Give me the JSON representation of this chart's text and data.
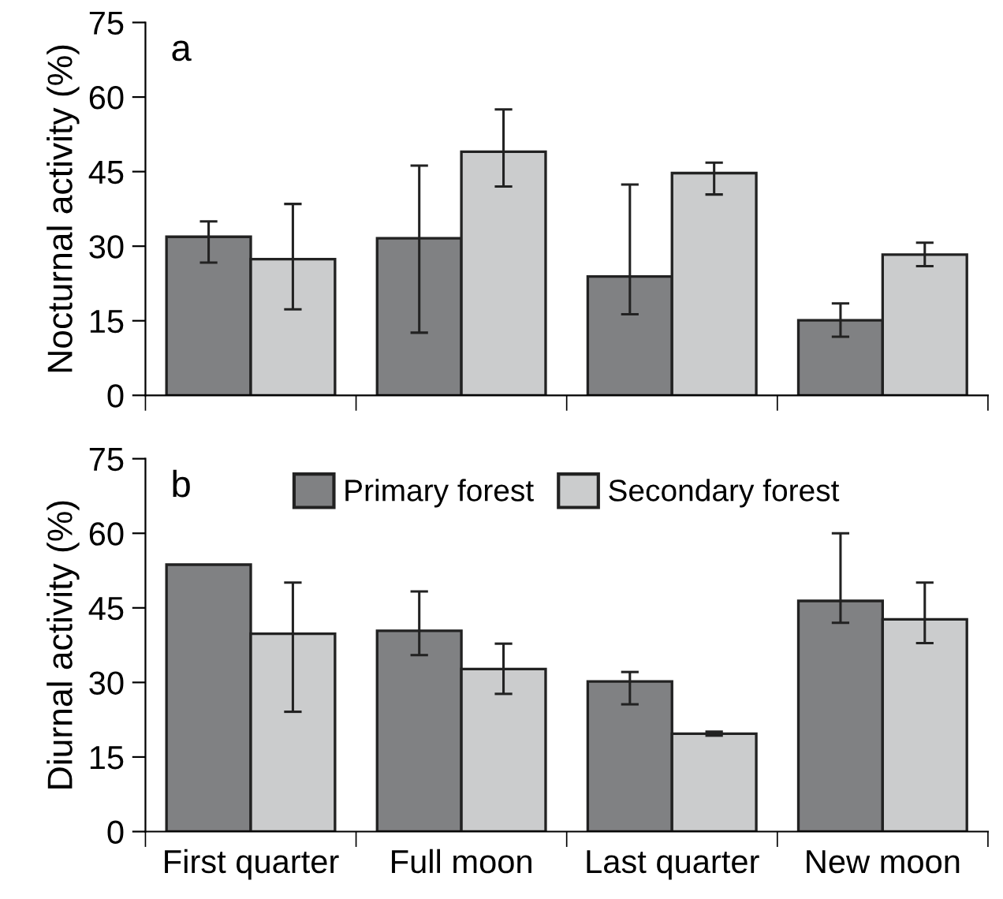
{
  "chart_data": [
    {
      "type": "bar",
      "title": "a",
      "ylabel": "Nocturnal activity (%)",
      "categories": [
        null,
        null,
        null,
        null
      ],
      "tick_labels": "y",
      "ylim": [
        0,
        75
      ],
      "yticks": [
        0,
        15,
        30,
        45,
        60,
        75
      ],
      "grid": false,
      "legend": false,
      "series": [
        {
          "color": "#808183",
          "values": [
            31.9,
            31.6,
            23.9,
            15.1
          ],
          "errors": [
            [
              26.7,
              35.0
            ],
            [
              12.6,
              46.2
            ],
            [
              16.3,
              42.4
            ],
            [
              11.8,
              18.5
            ]
          ]
        },
        {
          "color": "#cbcccd",
          "values": [
            27.4,
            49.0,
            44.7,
            28.3
          ],
          "errors": [
            [
              17.3,
              38.5
            ],
            [
              42.0,
              57.5
            ],
            [
              40.4,
              46.8
            ],
            [
              26.0,
              30.7
            ]
          ]
        }
      ]
    },
    {
      "type": "bar",
      "title": "b",
      "ylabel": "Diurnal activity (%)",
      "categories": [
        "First quarter",
        "Full moon",
        "Last quarter",
        "New moon"
      ],
      "ylim": [
        0,
        75
      ],
      "yticks": [
        0,
        15,
        30,
        45,
        60,
        75
      ],
      "grid": false,
      "legend": "top",
      "series": [
        {
          "name": "Primary forest",
          "color": "#808183",
          "values": [
            53.7,
            40.4,
            30.2,
            46.4
          ],
          "errors": [
            null,
            [
              35.5,
              48.3
            ],
            [
              25.6,
              32.1
            ],
            [
              42.0,
              60.0
            ]
          ]
        },
        {
          "name": "Secondary forest",
          "color": "#cbcccd",
          "values": [
            39.8,
            32.7,
            19.7,
            42.7
          ],
          "errors": [
            [
              24.1,
              50.1
            ],
            [
              27.7,
              37.8
            ],
            [
              19.3,
              20.1
            ],
            [
              37.9,
              50.1
            ]
          ]
        }
      ]
    }
  ]
}
